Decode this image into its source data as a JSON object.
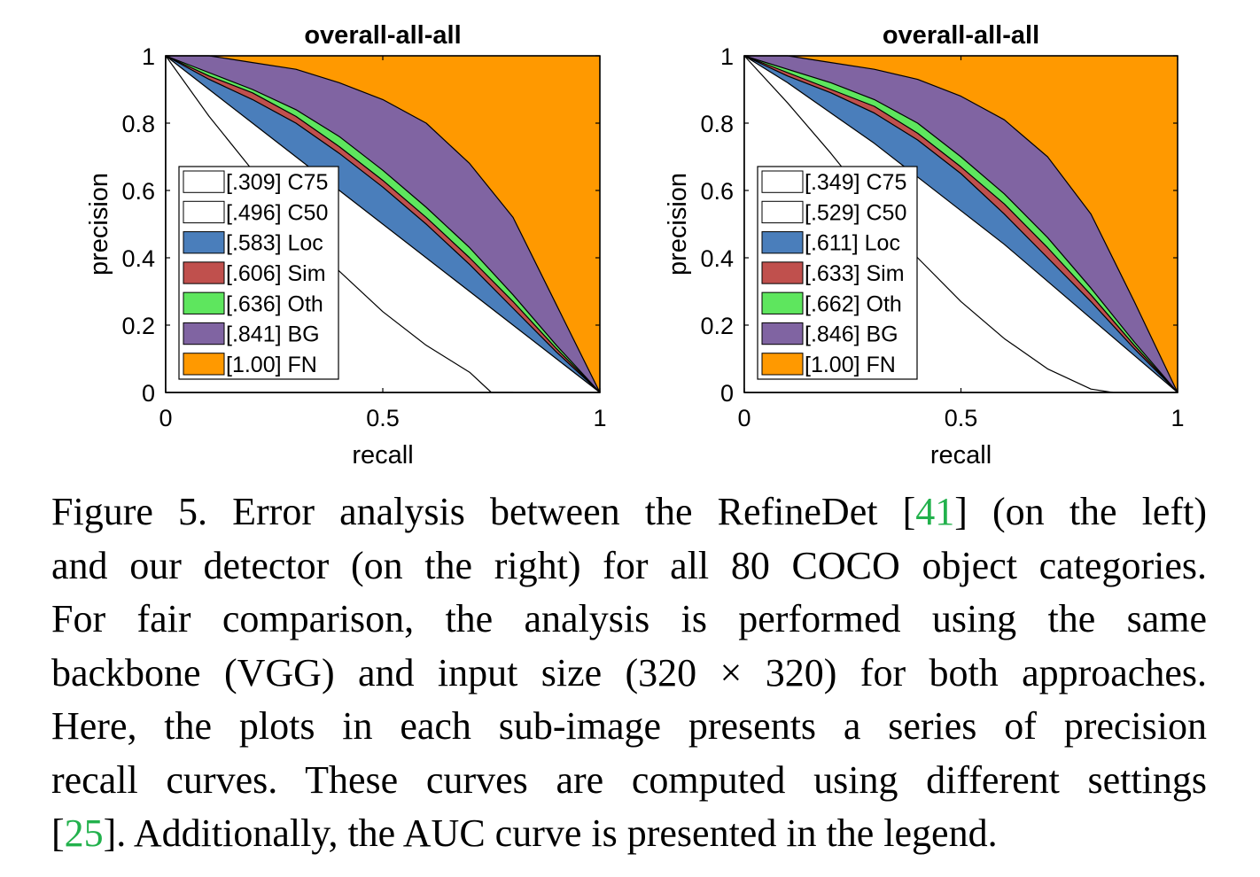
{
  "chart_data": [
    {
      "type": "area",
      "title": "overall-all-all",
      "xlabel": "recall",
      "ylabel": "precision",
      "xlim": [
        0,
        1
      ],
      "ylim": [
        0,
        1
      ],
      "xticks": [
        "0",
        "0.5",
        "1"
      ],
      "yticks": [
        "0",
        "0.2",
        "0.4",
        "0.6",
        "0.8",
        "1"
      ],
      "legend_position": "lower-left",
      "grid": false,
      "series": [
        {
          "name": "[.309] C75",
          "auc": 0.309,
          "color": "#ffffff",
          "x": [
            0,
            0.1,
            0.2,
            0.3,
            0.4,
            0.5,
            0.6,
            0.7,
            0.75,
            0.8
          ],
          "y": [
            1.0,
            0.82,
            0.66,
            0.5,
            0.36,
            0.24,
            0.14,
            0.06,
            0.0,
            0.0
          ]
        },
        {
          "name": "[.496] C50",
          "auc": 0.496,
          "color": "#ffffff",
          "x": [
            0,
            0.1,
            0.2,
            0.3,
            0.4,
            0.5,
            0.6,
            0.7,
            0.8,
            0.9,
            1.0
          ],
          "y": [
            1.0,
            0.9,
            0.8,
            0.7,
            0.6,
            0.5,
            0.4,
            0.3,
            0.2,
            0.1,
            0.0
          ]
        },
        {
          "name": "[.583] Loc",
          "auc": 0.583,
          "color": "#4a7ebb",
          "x": [
            0,
            0.1,
            0.2,
            0.3,
            0.4,
            0.5,
            0.6,
            0.7,
            0.8,
            0.9,
            1.0
          ],
          "y": [
            1.0,
            0.93,
            0.87,
            0.8,
            0.71,
            0.61,
            0.5,
            0.38,
            0.25,
            0.12,
            0.0
          ]
        },
        {
          "name": "[.606] Sim",
          "auc": 0.606,
          "color": "#c0504d",
          "x": [
            0,
            0.1,
            0.2,
            0.3,
            0.4,
            0.5,
            0.6,
            0.7,
            0.8,
            0.9,
            1.0
          ],
          "y": [
            1.0,
            0.94,
            0.89,
            0.82,
            0.73,
            0.63,
            0.52,
            0.4,
            0.27,
            0.13,
            0.0
          ]
        },
        {
          "name": "[.636] Oth",
          "auc": 0.636,
          "color": "#5ee65e",
          "x": [
            0,
            0.1,
            0.2,
            0.3,
            0.4,
            0.5,
            0.6,
            0.7,
            0.8,
            0.9,
            1.0
          ],
          "y": [
            1.0,
            0.95,
            0.9,
            0.84,
            0.76,
            0.66,
            0.55,
            0.43,
            0.29,
            0.14,
            0.0
          ]
        },
        {
          "name": "[.841] BG",
          "auc": 0.841,
          "color": "#8064a2",
          "x": [
            0,
            0.1,
            0.2,
            0.3,
            0.4,
            0.5,
            0.6,
            0.7,
            0.8,
            0.9,
            1.0
          ],
          "y": [
            1.0,
            1.0,
            0.98,
            0.96,
            0.92,
            0.87,
            0.8,
            0.68,
            0.52,
            0.26,
            0.0
          ]
        },
        {
          "name": "[1.00] FN",
          "auc": 1.0,
          "color": "#ff9900",
          "x": [
            0,
            1
          ],
          "y": [
            1,
            1
          ]
        }
      ]
    },
    {
      "type": "area",
      "title": "overall-all-all",
      "xlabel": "recall",
      "ylabel": "precision",
      "xlim": [
        0,
        1
      ],
      "ylim": [
        0,
        1
      ],
      "xticks": [
        "0",
        "0.5",
        "1"
      ],
      "yticks": [
        "0",
        "0.2",
        "0.4",
        "0.6",
        "0.8",
        "1"
      ],
      "legend_position": "lower-left",
      "grid": false,
      "series": [
        {
          "name": "[.349] C75",
          "auc": 0.349,
          "color": "#ffffff",
          "x": [
            0,
            0.1,
            0.2,
            0.3,
            0.4,
            0.5,
            0.6,
            0.7,
            0.8,
            0.85
          ],
          "y": [
            1.0,
            0.86,
            0.71,
            0.55,
            0.4,
            0.27,
            0.16,
            0.07,
            0.01,
            0.0
          ]
        },
        {
          "name": "[.529] C50",
          "auc": 0.529,
          "color": "#ffffff",
          "x": [
            0,
            0.1,
            0.2,
            0.3,
            0.4,
            0.5,
            0.6,
            0.7,
            0.8,
            0.9,
            1.0
          ],
          "y": [
            1.0,
            0.92,
            0.83,
            0.74,
            0.64,
            0.54,
            0.44,
            0.33,
            0.22,
            0.11,
            0.0
          ]
        },
        {
          "name": "[.611] Loc",
          "auc": 0.611,
          "color": "#4a7ebb",
          "x": [
            0,
            0.1,
            0.2,
            0.3,
            0.4,
            0.5,
            0.6,
            0.7,
            0.8,
            0.9,
            1.0
          ],
          "y": [
            1.0,
            0.94,
            0.89,
            0.83,
            0.75,
            0.65,
            0.53,
            0.4,
            0.27,
            0.13,
            0.0
          ]
        },
        {
          "name": "[.633] Sim",
          "auc": 0.633,
          "color": "#c0504d",
          "x": [
            0,
            0.1,
            0.2,
            0.3,
            0.4,
            0.5,
            0.6,
            0.7,
            0.8,
            0.9,
            1.0
          ],
          "y": [
            1.0,
            0.95,
            0.9,
            0.85,
            0.77,
            0.67,
            0.56,
            0.43,
            0.29,
            0.14,
            0.0
          ]
        },
        {
          "name": "[.662] Oth",
          "auc": 0.662,
          "color": "#5ee65e",
          "x": [
            0,
            0.1,
            0.2,
            0.3,
            0.4,
            0.5,
            0.6,
            0.7,
            0.8,
            0.9,
            1.0
          ],
          "y": [
            1.0,
            0.96,
            0.92,
            0.87,
            0.8,
            0.7,
            0.59,
            0.46,
            0.31,
            0.15,
            0.0
          ]
        },
        {
          "name": "[.846] BG",
          "auc": 0.846,
          "color": "#8064a2",
          "x": [
            0,
            0.1,
            0.2,
            0.3,
            0.4,
            0.5,
            0.6,
            0.7,
            0.8,
            0.9,
            1.0
          ],
          "y": [
            1.0,
            1.0,
            0.98,
            0.96,
            0.93,
            0.88,
            0.81,
            0.7,
            0.53,
            0.27,
            0.0
          ]
        },
        {
          "name": "[1.00] FN",
          "auc": 1.0,
          "color": "#ff9900",
          "x": [
            0,
            1
          ],
          "y": [
            1,
            1
          ]
        }
      ]
    }
  ],
  "caption": {
    "line1_pre": "Figure 5. Error analysis between the RefineDet [",
    "ref1": "41",
    "line1_post": "] (on the left)",
    "line2": "and our detector (on the right) for all 80 COCO object categories.",
    "line3": "For fair comparison, the analysis is performed using the same",
    "line4": "backbone (VGG) and input size (320 × 320) for both approaches.",
    "line5": "Here, the plots in each sub-image presents a series of precision",
    "line6": "recall curves. These curves are computed using different settings",
    "line7_pre": "[",
    "ref2": "25",
    "line7_post": "]. Additionally, the AUC curve is presented in the legend."
  }
}
